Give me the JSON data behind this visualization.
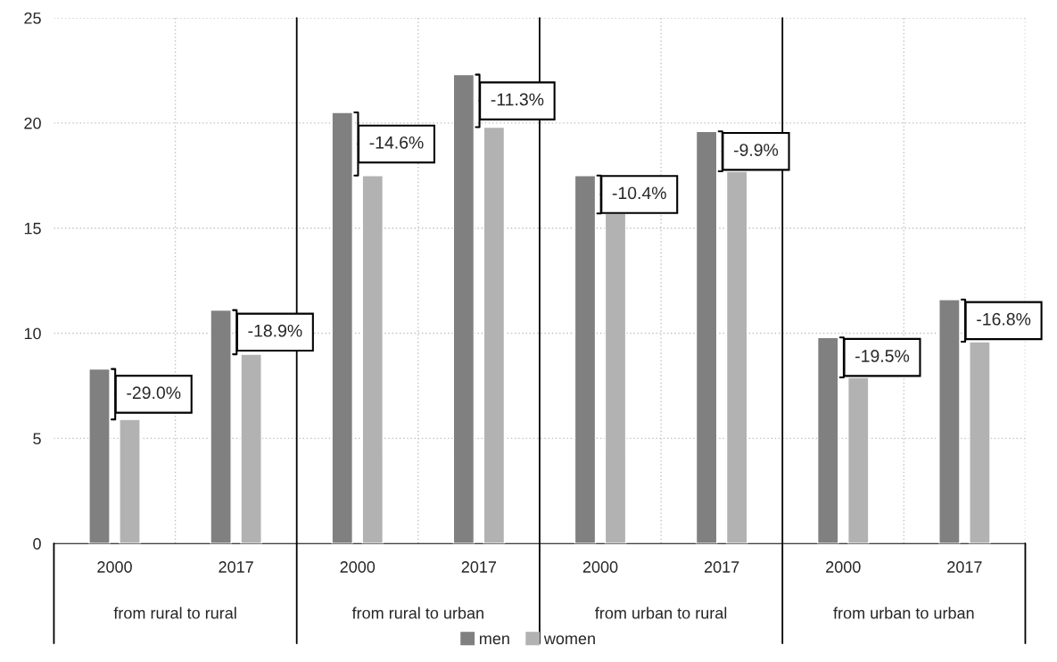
{
  "chart_data": {
    "type": "bar",
    "categories": [
      "2000",
      "2017",
      "2000",
      "2017",
      "2000",
      "2017",
      "2000",
      "2017"
    ],
    "series": [
      {
        "name": "men",
        "color": "#808080",
        "values": [
          8.3,
          11.1,
          20.5,
          22.3,
          17.5,
          19.6,
          9.8,
          11.6
        ]
      },
      {
        "name": "women",
        "color": "#b2b2b2",
        "values": [
          5.9,
          9.0,
          17.5,
          19.8,
          15.7,
          17.7,
          7.9,
          9.6
        ]
      }
    ],
    "annotations": [
      "-29.0%",
      "-18.9%",
      "-14.6%",
      "-11.3%",
      "-10.4%",
      "-9.9%",
      "-19.5%",
      "-16.8%",
      "from rural to rural",
      "from rural to urban",
      "from urban to rural",
      "from urban to urban"
    ],
    "ylim": [
      0,
      25
    ],
    "yticks": [
      0,
      5,
      10,
      15,
      20,
      25
    ],
    "grid": true,
    "legend": "bottom"
  }
}
